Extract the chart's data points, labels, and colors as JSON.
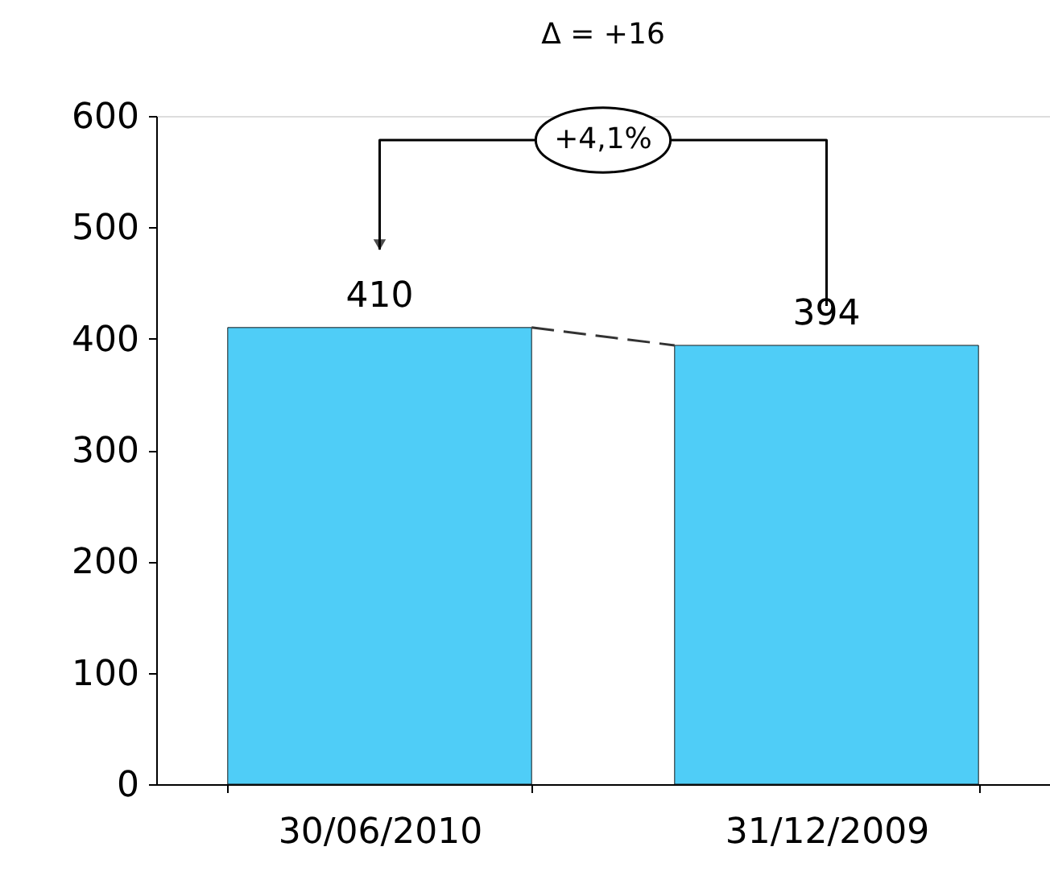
{
  "chart_data": {
    "type": "bar",
    "categories": [
      "30/06/2010",
      "31/12/2009"
    ],
    "values": [
      410,
      394
    ],
    "color": "#4fcdf7",
    "ylim": [
      0,
      600
    ],
    "yticks": [
      0,
      100,
      200,
      300,
      400,
      500,
      600
    ],
    "data_labels": true,
    "grid": false,
    "annotations": [
      "Δ = +16",
      "+4,1%"
    ]
  }
}
